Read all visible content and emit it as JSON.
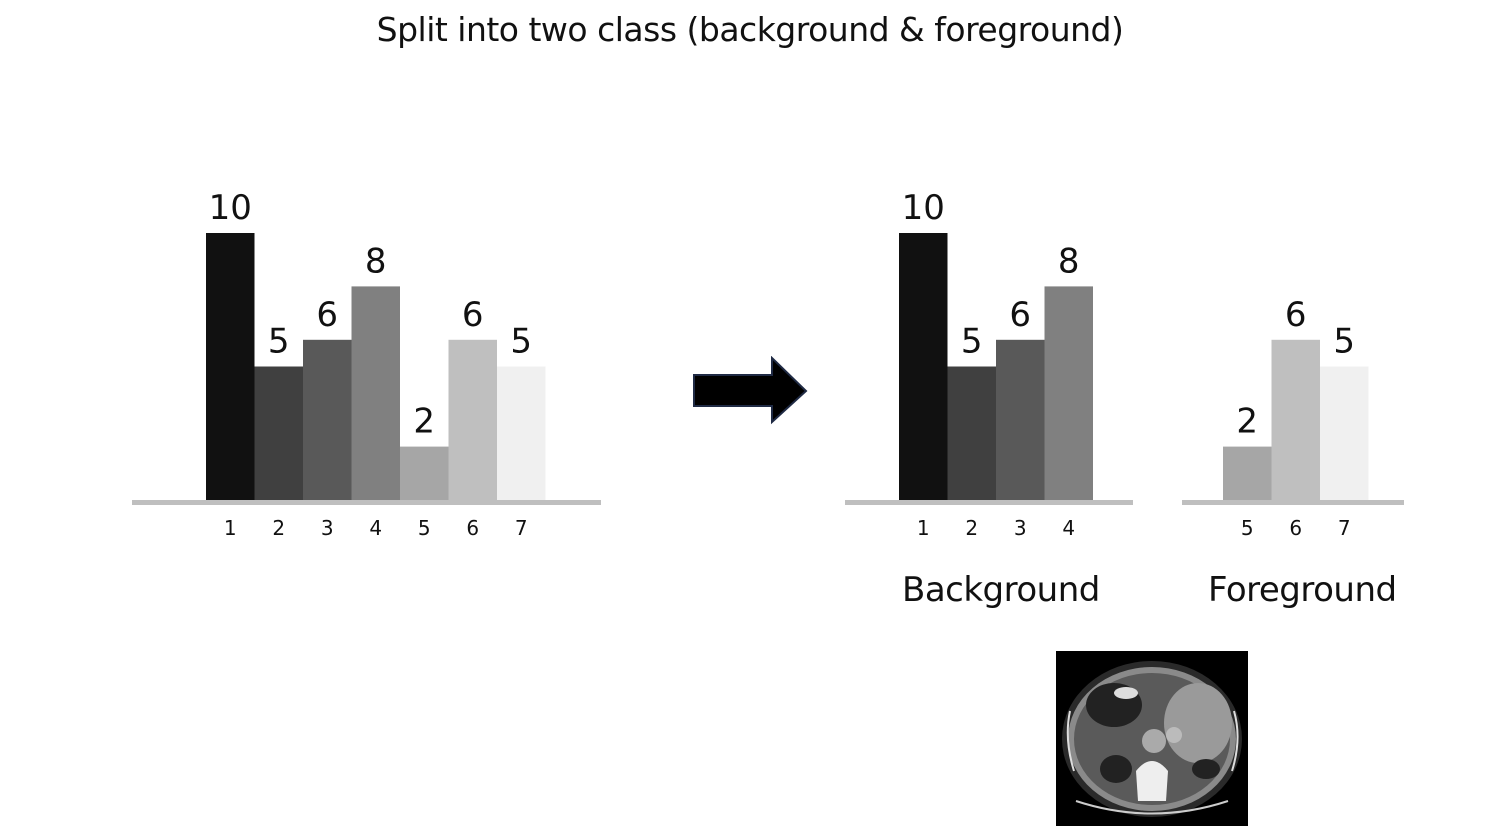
{
  "title": "Split into two class (background & foreground)",
  "chart_data": [
    {
      "type": "bar",
      "categories": [
        "1",
        "2",
        "3",
        "4",
        "5",
        "6",
        "7"
      ],
      "values": [
        10,
        5,
        6,
        8,
        2,
        6,
        5
      ],
      "colors": [
        "#111111",
        "#404040",
        "#595959",
        "#808080",
        "#a6a6a6",
        "#bfbfbf",
        "#f0f0f0"
      ],
      "ylim": [
        0,
        10
      ]
    },
    {
      "type": "bar",
      "categories": [
        "1",
        "2",
        "3",
        "4"
      ],
      "values": [
        10,
        5,
        6,
        8
      ],
      "colors": [
        "#111111",
        "#404040",
        "#595959",
        "#808080"
      ],
      "ylim": [
        0,
        10
      ]
    },
    {
      "type": "bar",
      "categories": [
        "5",
        "6",
        "7"
      ],
      "values": [
        2,
        6,
        5
      ],
      "colors": [
        "#a6a6a6",
        "#bfbfbf",
        "#f0f0f0"
      ],
      "ylim": [
        0,
        10
      ]
    }
  ],
  "labels": {
    "background": "Background",
    "foreground": "Foreground"
  },
  "colors": {
    "baseline": "#bfbfbf",
    "arrow": "#000000",
    "arrow_outline": "#1f2a44"
  }
}
